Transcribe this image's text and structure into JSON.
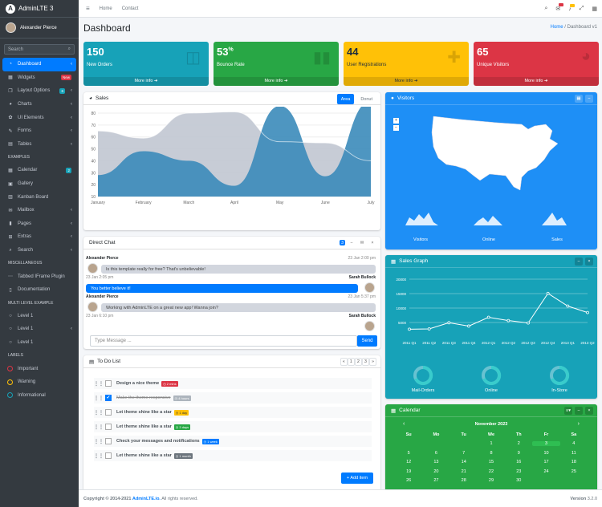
{
  "brand": {
    "name": "AdminLTE 3"
  },
  "user": {
    "name": "Alexander Pierce"
  },
  "sidebar": {
    "search_placeholder": "Search",
    "items": [
      {
        "label": "Dashboard",
        "icon": "tachometer-icon",
        "active": true
      },
      {
        "label": "Widgets",
        "icon": "widgets-icon",
        "badge": "New",
        "badge_color": "#dc3545"
      },
      {
        "label": "Layout Options",
        "icon": "copy-icon",
        "badge": "6",
        "badge_color": "#17a2b8"
      },
      {
        "label": "Charts",
        "icon": "chart-pie-icon"
      },
      {
        "label": "UI Elements",
        "icon": "tree-icon"
      },
      {
        "label": "Forms",
        "icon": "edit-icon"
      },
      {
        "label": "Tables",
        "icon": "table-icon"
      }
    ],
    "header_examples": "EXAMPLES",
    "examples": [
      {
        "label": "Calendar",
        "icon": "calendar-icon",
        "badge": "2",
        "badge_color": "#17a2b8"
      },
      {
        "label": "Gallery",
        "icon": "image-icon"
      },
      {
        "label": "Kanban Board",
        "icon": "columns-icon"
      },
      {
        "label": "Mailbox",
        "icon": "envelope-icon"
      },
      {
        "label": "Pages",
        "icon": "book-icon"
      },
      {
        "label": "Extras",
        "icon": "plus-square-icon"
      },
      {
        "label": "Search",
        "icon": "search-icon"
      }
    ],
    "header_misc": "MISCELLANEOUS",
    "misc": [
      {
        "label": "Tabbed IFrame Plugin",
        "icon": "ellipsis-icon"
      },
      {
        "label": "Documentation",
        "icon": "file-icon"
      }
    ],
    "header_multi": "MULTI LEVEL EXAMPLE",
    "levels": [
      {
        "label": "Level 1"
      },
      {
        "label": "Level 1"
      },
      {
        "label": "Level 1"
      }
    ],
    "header_labels": "LABELS",
    "labels": [
      {
        "label": "Important",
        "color": "#dc3545"
      },
      {
        "label": "Warning",
        "color": "#ffc107"
      },
      {
        "label": "Informational",
        "color": "#17a2b8"
      }
    ]
  },
  "topnav": {
    "home": "Home",
    "contact": "Contact"
  },
  "page": {
    "title": "Dashboard",
    "breadcrumb_home": "Home",
    "breadcrumb_sep": "/",
    "breadcrumb_current": "Dashboard v1"
  },
  "boxes": [
    {
      "value": "150",
      "sup": "",
      "label": "New Orders",
      "color": "#17a2b8",
      "icon": "shopping-bag-icon",
      "more": "More info"
    },
    {
      "value": "53",
      "sup": "%",
      "label": "Bounce Rate",
      "color": "#28a745",
      "icon": "bar-chart-icon",
      "more": "More info"
    },
    {
      "value": "44",
      "sup": "",
      "label": "User Registrations",
      "color": "#ffc107",
      "icon": "user-plus-icon",
      "more": "More info"
    },
    {
      "value": "65",
      "sup": "",
      "label": "Unique Visitors",
      "color": "#dc3545",
      "icon": "pie-chart-icon",
      "more": "More info"
    }
  ],
  "sales": {
    "title": "Sales",
    "tab_area": "Area",
    "tab_donut": "Donut"
  },
  "chart_data": {
    "type": "area",
    "categories": [
      "January",
      "February",
      "March",
      "April",
      "May",
      "June",
      "July"
    ],
    "yticks": [
      10,
      20,
      30,
      40,
      50,
      60,
      70,
      80
    ],
    "ylim": [
      10,
      80
    ],
    "series": [
      {
        "values": [
          28,
          48,
          40,
          19,
          86,
          27,
          90
        ],
        "color": "#3b8bba"
      },
      {
        "values": [
          65,
          59,
          80,
          81,
          56,
          55,
          40
        ],
        "color": "#c1c7d1"
      }
    ]
  },
  "chat": {
    "title": "Direct Chat",
    "count": "3",
    "messages": [
      {
        "name": "Alexander Pierce",
        "time": "23 Jan 2:00 pm",
        "text": "Is this template really for free? That's unbelievable!",
        "side": "left"
      },
      {
        "name": "Sarah Bullock",
        "time": "23 Jan 2:05 pm",
        "text": "You better believe it!",
        "side": "right"
      },
      {
        "name": "Alexander Pierce",
        "time": "23 Jan 5:37 pm",
        "text": "Working with AdminLTE on a great new app! Wanna join?",
        "side": "left"
      },
      {
        "name": "Sarah Bullock",
        "time": "23 Jan 6:10 pm",
        "text": "",
        "side": "right"
      }
    ],
    "input_placeholder": "Type Message ...",
    "send": "Send"
  },
  "todo": {
    "title": "To Do List",
    "pages": [
      "«",
      "1",
      "2",
      "3",
      "»"
    ],
    "items": [
      {
        "text": "Design a nice theme",
        "tag": "2 mins",
        "tag_color": "#dc3545",
        "done": false
      },
      {
        "text": "Make the theme responsive",
        "tag": "4 hours",
        "tag_color": "#adb5bd",
        "done": true
      },
      {
        "text": "Let theme shine like a star",
        "tag": "1 day",
        "tag_color": "#ffc107",
        "done": false
      },
      {
        "text": "Let theme shine like a star",
        "tag": "3 days",
        "tag_color": "#28a745",
        "done": false
      },
      {
        "text": "Check your messages and notifications",
        "tag": "1 week",
        "tag_color": "#007bff",
        "done": false
      },
      {
        "text": "Let theme shine like a star",
        "tag": "1 month",
        "tag_color": "#6c757d",
        "done": false
      }
    ],
    "add": "Add item"
  },
  "visitors": {
    "title": "Visitors",
    "stats": [
      "Visitors",
      "Online",
      "Sales"
    ]
  },
  "graph": {
    "title": "Sales Graph",
    "yticks": [
      "20000",
      "15000",
      "10000",
      "5000"
    ],
    "xticks": [
      "2011 Q1",
      "2011 Q2",
      "2011 Q3",
      "2011 Q4",
      "2012 Q1",
      "2012 Q2",
      "2012 Q3",
      "2012 Q4",
      "2013 Q1",
      "2013 Q2"
    ],
    "values": [
      2666,
      2778,
      4912,
      3767,
      6810,
      5670,
      4820,
      15073,
      10687,
      8432
    ],
    "knobs": [
      "Mail-Orders",
      "Online",
      "In-Store"
    ]
  },
  "calendar": {
    "title": "Calendar",
    "month": "November 2023",
    "days": [
      "Su",
      "Mo",
      "Tu",
      "We",
      "Th",
      "Fr",
      "Sa"
    ],
    "weeks": [
      [
        "",
        "",
        "",
        "1",
        "2",
        "3",
        "4"
      ],
      [
        "5",
        "6",
        "7",
        "8",
        "9",
        "10",
        "11"
      ],
      [
        "12",
        "13",
        "14",
        "15",
        "16",
        "17",
        "18"
      ],
      [
        "19",
        "20",
        "21",
        "22",
        "23",
        "24",
        "25"
      ],
      [
        "26",
        "27",
        "28",
        "29",
        "30",
        "",
        ""
      ]
    ]
  },
  "footer": {
    "copyright": "Copyright © 2014-2021",
    "brand": "AdminLTE.io.",
    "rights": "All rights reserved.",
    "version_label": "Version",
    "version": "3.2.0"
  }
}
